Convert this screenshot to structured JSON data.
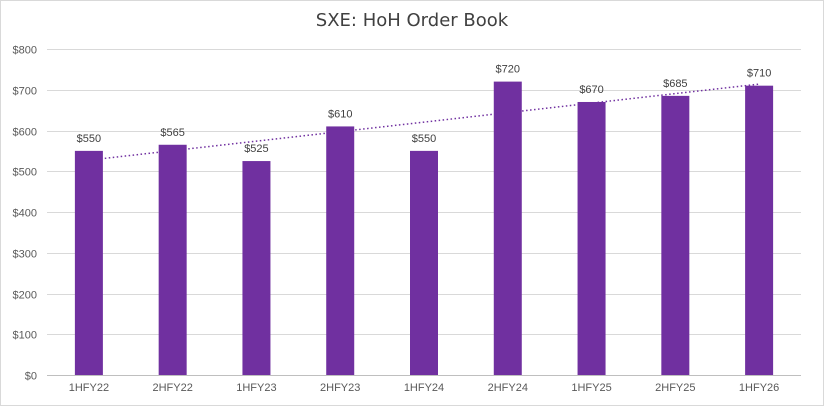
{
  "chart_data": {
    "type": "bar",
    "title": "SXE: HoH Order Book",
    "categories": [
      "1HFY22",
      "2HFY22",
      "1HFY23",
      "2HFY23",
      "1HFY24",
      "2HFY24",
      "1HFY25",
      "2HFY25",
      "1HFY26"
    ],
    "values": [
      550,
      565,
      525,
      610,
      550,
      720,
      670,
      685,
      710
    ],
    "data_labels": [
      "$550",
      "$565",
      "$525",
      "$610",
      "$550",
      "$720",
      "$670",
      "$685",
      "$710"
    ],
    "ylim": [
      0,
      800
    ],
    "y_ticks": [
      0,
      100,
      200,
      300,
      400,
      500,
      600,
      700,
      800
    ],
    "y_tick_labels": [
      "$0",
      "$100",
      "$200",
      "$300",
      "$400",
      "$500",
      "$600",
      "$700",
      "$800"
    ],
    "xlabel": "",
    "ylabel": "",
    "grid": true,
    "legend": "none",
    "bar_color": "#7030a0",
    "trendline": {
      "type": "linear",
      "style": "dotted",
      "color": "#7030a0"
    }
  }
}
